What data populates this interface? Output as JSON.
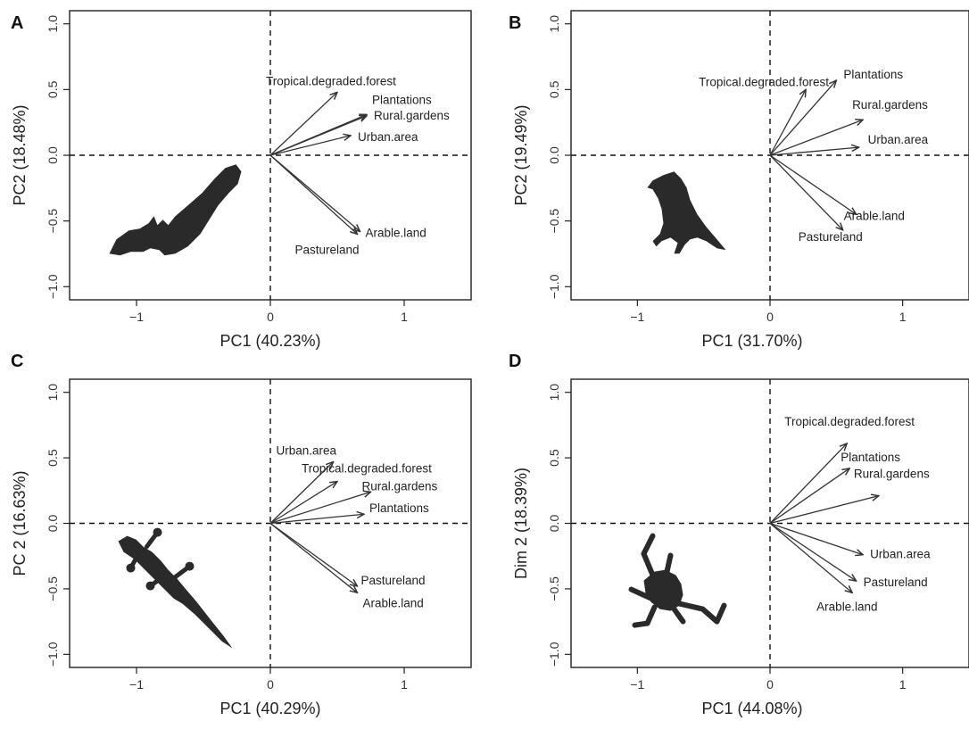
{
  "chart_data": [
    {
      "type": "biplot",
      "panel": "A",
      "xlabel": "PC1 (40.23%)",
      "ylabel": "PC2 (18.48%)",
      "xlim": [
        -1.5,
        1.5
      ],
      "ylim": [
        -1.1,
        1.1
      ],
      "xticks": [
        -1,
        0,
        1
      ],
      "yticks": [
        -1.0,
        -0.5,
        0.0,
        0.5,
        1.0
      ],
      "silhouette": "bat-icon",
      "vectors": [
        {
          "label": "Tropical.degraded.forest",
          "x": 0.5,
          "y": 0.48
        },
        {
          "label": "Plantations",
          "x": 0.72,
          "y": 0.31
        },
        {
          "label": "Rural.gardens",
          "x": 0.72,
          "y": 0.3
        },
        {
          "label": "Urban.area",
          "x": 0.6,
          "y": 0.15
        },
        {
          "label": "Arable.land",
          "x": 0.67,
          "y": -0.58
        },
        {
          "label": "Pastureland",
          "x": 0.65,
          "y": -0.6
        }
      ]
    },
    {
      "type": "biplot",
      "panel": "B",
      "xlabel": "PC1 (31.70%)",
      "ylabel": "PC2 (19.49%)",
      "xlim": [
        -1.5,
        1.5
      ],
      "ylim": [
        -1.1,
        1.1
      ],
      "xticks": [
        -1,
        0,
        1
      ],
      "yticks": [
        -1.0,
        -0.5,
        0.0,
        0.5,
        1.0
      ],
      "silhouette": "bird-icon",
      "vectors": [
        {
          "label": "Tropical.degraded.forest",
          "x": 0.27,
          "y": 0.5
        },
        {
          "label": "Plantations",
          "x": 0.5,
          "y": 0.57
        },
        {
          "label": "Rural.gardens",
          "x": 0.7,
          "y": 0.27
        },
        {
          "label": "Urban.area",
          "x": 0.67,
          "y": 0.06
        },
        {
          "label": "Arable.land",
          "x": 0.65,
          "y": -0.45
        },
        {
          "label": "Pastureland",
          "x": 0.55,
          "y": -0.57
        }
      ]
    },
    {
      "type": "biplot",
      "panel": "C",
      "xlabel": "PC1 (40.29%)",
      "ylabel": "PC 2 (16.63%)",
      "xlim": [
        -1.5,
        1.5
      ],
      "ylim": [
        -1.1,
        1.1
      ],
      "xticks": [
        -1,
        0,
        1
      ],
      "yticks": [
        -1.0,
        -0.5,
        0.0,
        0.5,
        1.0
      ],
      "silhouette": "lizard-icon",
      "vectors": [
        {
          "label": "Urban.area",
          "x": 0.47,
          "y": 0.47
        },
        {
          "label": "Tropical.degraded.forest",
          "x": 0.5,
          "y": 0.32
        },
        {
          "label": "Rural.gardens",
          "x": 0.75,
          "y": 0.24
        },
        {
          "label": "Plantations",
          "x": 0.7,
          "y": 0.07
        },
        {
          "label": "Pastureland",
          "x": 0.65,
          "y": -0.48
        },
        {
          "label": "Arable.land",
          "x": 0.65,
          "y": -0.53
        }
      ]
    },
    {
      "type": "biplot",
      "panel": "D",
      "xlabel": "PC1 (44.08%)",
      "ylabel": "Dim 2 (18.39%)",
      "xlim": [
        -1.5,
        1.5
      ],
      "ylim": [
        -1.1,
        1.1
      ],
      "xticks": [
        -1,
        0,
        1
      ],
      "yticks": [
        -1.0,
        -0.5,
        0.0,
        0.5,
        1.0
      ],
      "silhouette": "frog-icon",
      "vectors": [
        {
          "label": "Tropical.degraded.forest",
          "x": 0.58,
          "y": 0.61
        },
        {
          "label": "Plantations",
          "x": 0.6,
          "y": 0.42
        },
        {
          "label": "Rural.gardens",
          "x": 0.82,
          "y": 0.21
        },
        {
          "label": "Urban.area",
          "x": 0.7,
          "y": -0.24
        },
        {
          "label": "Pastureland",
          "x": 0.65,
          "y": -0.44
        },
        {
          "label": "Arable.land",
          "x": 0.62,
          "y": -0.53
        }
      ]
    }
  ]
}
